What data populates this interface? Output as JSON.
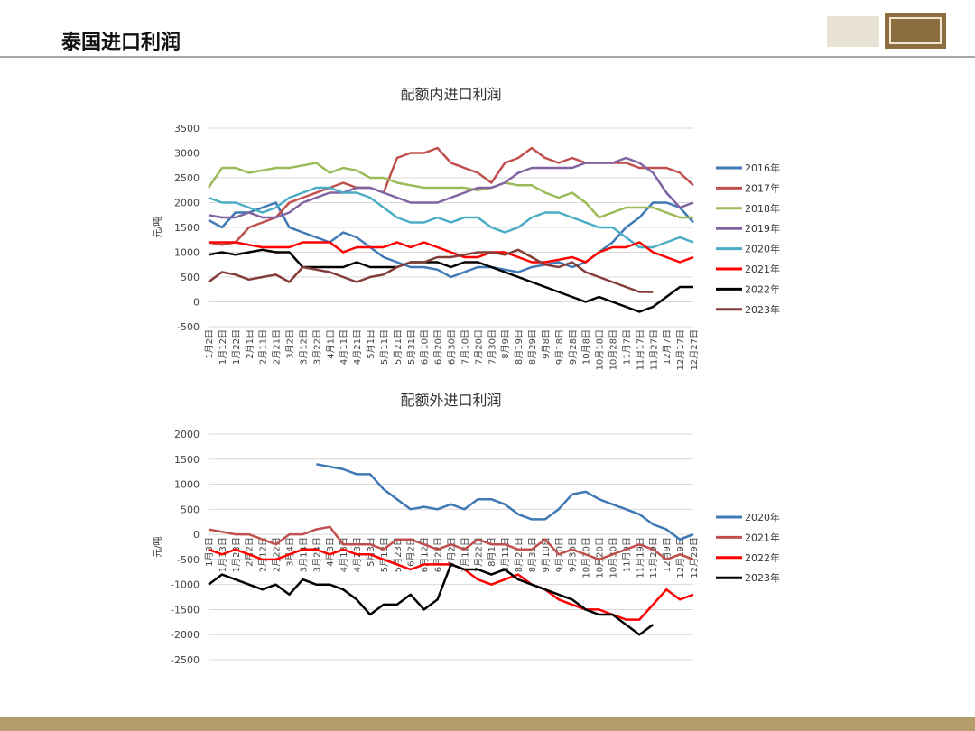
{
  "header": {
    "title": "泰国进口利润"
  },
  "chart_data": [
    {
      "type": "line",
      "title": "配额内进口利润",
      "ylabel": "元/吨",
      "ylim": [
        -500,
        3500
      ],
      "yticks": [
        -500,
        0,
        500,
        1000,
        1500,
        2000,
        2500,
        3000,
        3500
      ],
      "grid": true,
      "legend": "right",
      "categories": [
        "1月2日",
        "1月12日",
        "1月22日",
        "2月1日",
        "2月11日",
        "2月21日",
        "3月2日",
        "3月12日",
        "3月22日",
        "4月1日",
        "4月11日",
        "4月21日",
        "5月1日",
        "5月11日",
        "5月21日",
        "5月31日",
        "6月10日",
        "6月20日",
        "6月30日",
        "7月10日",
        "7月20日",
        "7月30日",
        "8月9日",
        "8月19日",
        "8月29日",
        "9月8日",
        "9月18日",
        "9月28日",
        "10月8日",
        "10月18日",
        "10月28日",
        "11月7日",
        "11月17日",
        "11月27日",
        "12月7日",
        "12月17日",
        "12月27日"
      ],
      "series": [
        {
          "name": "2016年",
          "color": "#3f79b5",
          "values": [
            1650,
            1500,
            1800,
            1800,
            1900,
            2000,
            1500,
            1400,
            1300,
            1200,
            1400,
            1300,
            1100,
            900,
            800,
            700,
            700,
            650,
            500,
            600,
            700,
            700,
            650,
            600,
            700,
            750,
            800,
            700,
            800,
            1000,
            1200,
            1500,
            1700,
            2000,
            2000,
            1900,
            1600
          ]
        },
        {
          "name": "2017年",
          "color": "#c0504d",
          "values": [
            1200,
            1150,
            1200,
            1500,
            1600,
            1700,
            2000,
            2100,
            2200,
            2300,
            2400,
            2300,
            2300,
            2200,
            2900,
            3000,
            3000,
            3100,
            2800,
            2700,
            2600,
            2400,
            2800,
            2900,
            3100,
            2900,
            2800,
            2900,
            2800,
            2800,
            2800,
            2800,
            2700,
            2700,
            2700,
            2600,
            2350
          ]
        },
        {
          "name": "2018年",
          "color": "#9bbb59",
          "values": [
            2300,
            2700,
            2700,
            2600,
            2650,
            2700,
            2700,
            2750,
            2800,
            2600,
            2700,
            2650,
            2500,
            2500,
            2400,
            2350,
            2300,
            2300,
            2300,
            2300,
            2250,
            2300,
            2400,
            2350,
            2350,
            2200,
            2100,
            2200,
            2000,
            1700,
            1800,
            1900,
            1900,
            1900,
            1800,
            1700,
            1700
          ]
        },
        {
          "name": "2019年",
          "color": "#8064a2",
          "values": [
            1750,
            1700,
            1700,
            1800,
            1700,
            1700,
            1800,
            2000,
            2100,
            2200,
            2200,
            2300,
            2300,
            2200,
            2100,
            2000,
            2000,
            2000,
            2100,
            2200,
            2300,
            2300,
            2400,
            2600,
            2700,
            2700,
            2700,
            2700,
            2800,
            2800,
            2800,
            2900,
            2800,
            2600,
            2200,
            1900,
            2000
          ]
        },
        {
          "name": "2020年",
          "color": "#4bacc6",
          "values": [
            2100,
            2000,
            2000,
            1900,
            1800,
            1900,
            2100,
            2200,
            2300,
            2300,
            2200,
            2200,
            2100,
            1900,
            1700,
            1600,
            1600,
            1700,
            1600,
            1700,
            1700,
            1500,
            1400,
            1500,
            1700,
            1800,
            1800,
            1700,
            1600,
            1500,
            1500,
            1300,
            1100,
            1100,
            1200,
            1300,
            1200
          ]
        },
        {
          "name": "2021年",
          "color": "#ff0000",
          "values": [
            1200,
            1200,
            1200,
            1150,
            1100,
            1100,
            1100,
            1200,
            1200,
            1200,
            1000,
            1100,
            1100,
            1100,
            1200,
            1100,
            1200,
            1100,
            1000,
            900,
            900,
            1000,
            1000,
            900,
            800,
            800,
            850,
            900,
            800,
            1000,
            1100,
            1100,
            1200,
            1000,
            900,
            800,
            900
          ]
        },
        {
          "name": "2022年",
          "color": "#000000",
          "values": [
            950,
            1000,
            950,
            1000,
            1050,
            1000,
            1000,
            700,
            700,
            700,
            700,
            800,
            700,
            700,
            700,
            800,
            800,
            800,
            700,
            800,
            800,
            700,
            600,
            500,
            400,
            300,
            200,
            100,
            0,
            100,
            0,
            -100,
            -200,
            -100,
            100,
            300,
            300
          ]
        },
        {
          "name": "2023年",
          "color": "#843c39",
          "values": [
            400,
            600,
            550,
            450,
            500,
            550,
            400,
            700,
            650,
            600,
            500,
            400,
            500,
            550,
            700,
            800,
            800,
            900,
            900,
            950,
            1000,
            1000,
            950,
            1050,
            900,
            750,
            700,
            800,
            600,
            500,
            400,
            300,
            200,
            200,
            null,
            null,
            null
          ]
        }
      ]
    },
    {
      "type": "line",
      "title": "配额外进口利润",
      "ylabel": "元/吨",
      "ylim": [
        -2500,
        2000
      ],
      "yticks": [
        -2500,
        -2000,
        -1500,
        -1000,
        -500,
        0,
        500,
        1000,
        1500,
        2000
      ],
      "grid": true,
      "legend": "right",
      "categories": [
        "1月3日",
        "1月13日",
        "1月23日",
        "2月2日",
        "2月12日",
        "2月22日",
        "3月4日",
        "3月14日",
        "3月24日",
        "4月3日",
        "4月13日",
        "4月23日",
        "5月3日",
        "5月13日",
        "5月23日",
        "6月2日",
        "6月12日",
        "6月22日",
        "7月2日",
        "7月12日",
        "7月22日",
        "8月1日",
        "8月11日",
        "8月21日",
        "8月31日",
        "9月10日",
        "9月20日",
        "9月30日",
        "10月10日",
        "10月20日",
        "10月30日",
        "11月9日",
        "11月19日",
        "11月29日",
        "12月9日",
        "12月19日",
        "12月29日"
      ],
      "series": [
        {
          "name": "2020年",
          "color": "#3f79b5",
          "values": [
            null,
            null,
            null,
            null,
            null,
            null,
            null,
            null,
            1400,
            1350,
            1300,
            1200,
            1200,
            900,
            700,
            500,
            550,
            500,
            600,
            500,
            700,
            700,
            600,
            400,
            300,
            300,
            500,
            800,
            850,
            700,
            600,
            500,
            400,
            200,
            100,
            -100,
            0
          ]
        },
        {
          "name": "2021年",
          "color": "#c0504d",
          "values": [
            100,
            50,
            0,
            0,
            -100,
            -200,
            0,
            0,
            100,
            150,
            -200,
            -200,
            -200,
            -300,
            -100,
            -100,
            -200,
            -300,
            -200,
            -300,
            -100,
            -200,
            -200,
            -300,
            -300,
            -100,
            -400,
            -300,
            -400,
            -500,
            -400,
            -300,
            -200,
            -300,
            -500,
            -400,
            -500
          ]
        },
        {
          "name": "2022年",
          "color": "#ff0000",
          "values": [
            -300,
            -400,
            -300,
            -400,
            -500,
            -500,
            -400,
            -300,
            -300,
            -400,
            -300,
            -400,
            -400,
            -500,
            -600,
            -700,
            -600,
            -600,
            -600,
            -700,
            -900,
            -1000,
            -900,
            -800,
            -1000,
            -1100,
            -1300,
            -1400,
            -1500,
            -1500,
            -1600,
            -1700,
            -1700,
            -1400,
            -1100,
            -1300,
            -1200
          ]
        },
        {
          "name": "2023年",
          "color": "#000000",
          "values": [
            -1000,
            -800,
            -900,
            -1000,
            -1100,
            -1000,
            -1200,
            -900,
            -1000,
            -1000,
            -1100,
            -1300,
            -1600,
            -1400,
            -1400,
            -1200,
            -1500,
            -1300,
            -600,
            -700,
            -700,
            -800,
            -700,
            -900,
            -1000,
            -1100,
            -1200,
            -1300,
            -1500,
            -1600,
            -1600,
            -1800,
            -2000,
            -1800,
            null,
            null,
            null
          ]
        }
      ]
    }
  ]
}
